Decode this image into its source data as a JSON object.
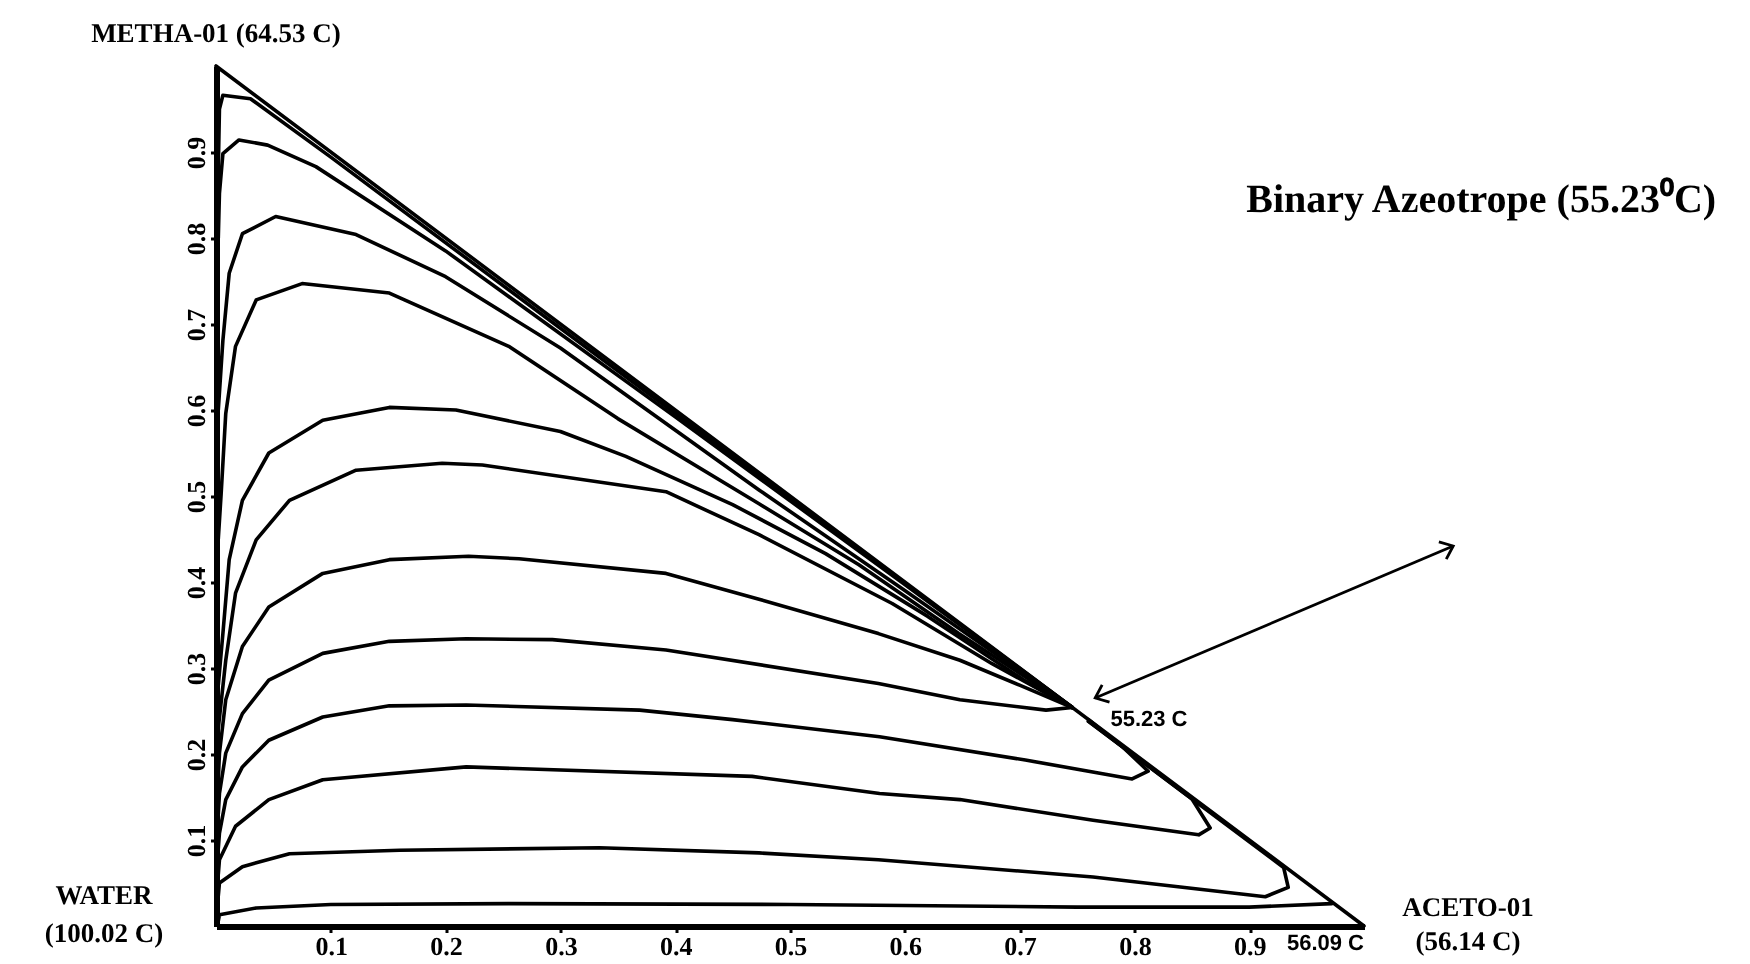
{
  "chart_data": {
    "type": "line",
    "xlim": [
      0,
      1
    ],
    "ylim": [
      0,
      1
    ],
    "xticks": [
      0.1,
      0.2,
      0.3,
      0.4,
      0.5,
      0.6,
      0.7,
      0.8,
      0.9
    ],
    "yticks": [
      0.1,
      0.2,
      0.3,
      0.4,
      0.5,
      0.6,
      0.7,
      0.8,
      0.9
    ],
    "series": [
      {
        "color": "#000000",
        "x": [
          0,
          1
        ],
        "values": [
          1,
          0
        ]
      },
      {
        "color": "#000000",
        "x": [
          0.002,
          0.003,
          0.006,
          0.03,
          0.1,
          0.3,
          0.5,
          0.65,
          0.746
        ],
        "values": [
          0.88,
          0.95,
          0.966,
          0.962,
          0.894,
          0.695,
          0.497,
          0.349,
          0.254
        ]
      },
      {
        "color": "#000000",
        "x": [
          0.002,
          0.003,
          0.006,
          0.02,
          0.045,
          0.087,
          0.2,
          0.4,
          0.6,
          0.746
        ],
        "values": [
          0.8,
          0.852,
          0.898,
          0.914,
          0.908,
          0.883,
          0.785,
          0.592,
          0.397,
          0.254
        ]
      },
      {
        "color": "#000000",
        "x": [
          0.002,
          0.006,
          0.0115,
          0.023,
          0.052,
          0.122,
          0.2,
          0.3,
          0.473,
          0.6,
          0.746
        ],
        "values": [
          0.6,
          0.681,
          0.759,
          0.805,
          0.825,
          0.804,
          0.755,
          0.672,
          0.507,
          0.39,
          0.254
        ]
      },
      {
        "color": "#000000",
        "x": [
          0.002,
          0.0045,
          0.0085,
          0.017,
          0.035,
          0.075,
          0.151,
          0.255,
          0.35,
          0.473,
          0.56,
          0.647,
          0.746
        ],
        "values": [
          0.45,
          0.503,
          0.596,
          0.674,
          0.728,
          0.747,
          0.736,
          0.674,
          0.59,
          0.491,
          0.42,
          0.34,
          0.254
        ]
      },
      {
        "color": "#000000",
        "x": [
          0.002,
          0.006,
          0.0115,
          0.023,
          0.046,
          0.093,
          0.151,
          0.209,
          0.3,
          0.357,
          0.45,
          0.531,
          0.62,
          0.705,
          0.746
        ],
        "values": [
          0.28,
          0.34,
          0.426,
          0.495,
          0.55,
          0.588,
          0.603,
          0.6,
          0.575,
          0.546,
          0.49,
          0.433,
          0.36,
          0.285,
          0.254
        ]
      },
      {
        "color": "#000000",
        "x": [
          0.002,
          0.0085,
          0.017,
          0.035,
          0.064,
          0.122,
          0.197,
          0.232,
          0.392,
          0.473,
          0.589,
          0.676,
          0.746
        ],
        "values": [
          0.23,
          0.309,
          0.387,
          0.449,
          0.495,
          0.53,
          0.538,
          0.536,
          0.505,
          0.455,
          0.375,
          0.305,
          0.254
        ]
      },
      {
        "color": "#000000",
        "x": [
          0.002,
          0.003,
          0.0085,
          0.023,
          0.046,
          0.093,
          0.151,
          0.22,
          0.264,
          0.392,
          0.473,
          0.577,
          0.648,
          0.7,
          0.746
        ],
        "values": [
          0.17,
          0.201,
          0.263,
          0.325,
          0.371,
          0.41,
          0.426,
          0.43,
          0.427,
          0.41,
          0.38,
          0.34,
          0.309,
          0.28,
          0.254
        ]
      },
      {
        "color": "#000000",
        "x": [
          0.002,
          0.003,
          0.0085,
          0.023,
          0.046,
          0.093,
          0.151,
          0.218,
          0.293,
          0.392,
          0.577,
          0.648,
          0.723,
          0.746
        ],
        "values": [
          0.13,
          0.154,
          0.201,
          0.247,
          0.286,
          0.317,
          0.331,
          0.334,
          0.333,
          0.321,
          0.282,
          0.263,
          0.251,
          0.254
        ]
      },
      {
        "color": "#000000",
        "x": [
          0.002,
          0.003,
          0.0085,
          0.023,
          0.046,
          0.093,
          0.151,
          0.218,
          0.369,
          0.45,
          0.578,
          0.705,
          0.798,
          0.812,
          0.79,
          0.76
        ],
        "values": [
          0.09,
          0.108,
          0.147,
          0.185,
          0.216,
          0.243,
          0.256,
          0.257,
          0.251,
          0.24,
          0.22,
          0.193,
          0.171,
          0.18,
          0.208,
          0.24
        ]
      },
      {
        "color": "#000000",
        "x": [
          0.002,
          0.003,
          0.017,
          0.046,
          0.093,
          0.218,
          0.467,
          0.578,
          0.648,
          0.764,
          0.856,
          0.866,
          0.85,
          0.8,
          0.76
        ],
        "values": [
          0.06,
          0.077,
          0.116,
          0.147,
          0.17,
          0.185,
          0.174,
          0.154,
          0.147,
          0.123,
          0.106,
          0.114,
          0.148,
          0.198,
          0.238
        ]
      },
      {
        "color": "#000000",
        "x": [
          0.002,
          0.003,
          0.023,
          0.064,
          0.16,
          0.334,
          0.473,
          0.577,
          0.764,
          0.914,
          0.934,
          0.93,
          0.85,
          0.76
        ],
        "values": [
          0.035,
          0.05,
          0.069,
          0.084,
          0.088,
          0.091,
          0.085,
          0.077,
          0.057,
          0.034,
          0.045,
          0.068,
          0.148,
          0.238
        ]
      },
      {
        "color": "#000000",
        "x": [
          0.002,
          0.003,
          0.035,
          0.1,
          0.255,
          0.5,
          0.75,
          0.9,
          0.972
        ],
        "values": [
          0.006,
          0.013,
          0.021,
          0.025,
          0.026,
          0.025,
          0.022,
          0.022,
          0.026
        ]
      }
    ],
    "annotations": [
      {
        "text": "METHA-01 (64.53 C)",
        "x": 0,
        "y": 1
      },
      "Binary Azeotrope (55.23⁰C)",
      {
        "text": "55.23 C",
        "x": 0.746,
        "y": 0.254
      },
      {
        "text": "WATER\n(100.02 C)",
        "x": 0,
        "y": 0
      },
      {
        "text": "56.09 C",
        "x": 0.972,
        "y": 0.026
      },
      {
        "text": "ACETO-01\n(56.14 C)",
        "x": 1,
        "y": 0
      }
    ]
  }
}
